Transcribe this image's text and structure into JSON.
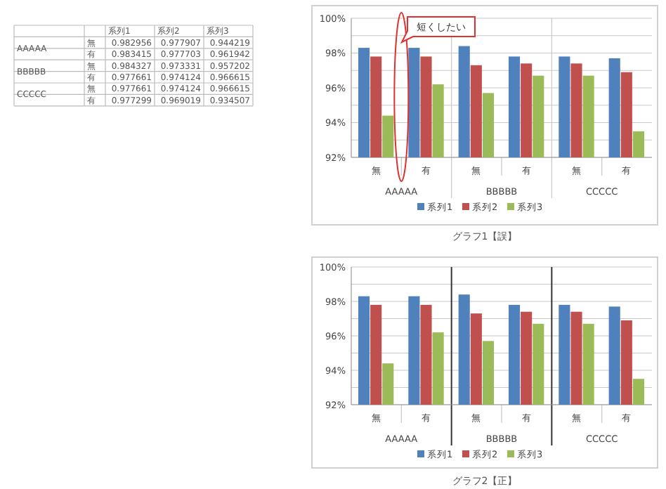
{
  "chart_data": [
    {
      "type": "other",
      "categories": [
        "無",
        "有",
        "無",
        "有",
        "無",
        "有"
      ],
      "series": [
        {
          "name": "系列1",
          "values": [
            0.982956,
            0.983415,
            0.984327,
            0.977661,
            0.977661,
            0.977299
          ]
        },
        {
          "name": "系列2",
          "values": [
            0.977907,
            0.977703,
            0.973331,
            0.974124,
            0.974124,
            0.969019
          ]
        },
        {
          "name": "系列3",
          "values": [
            0.944219,
            0.961942,
            0.957202,
            0.966615,
            0.966615,
            0.934507
          ]
        }
      ],
      "data_labels": true,
      "annotations": [
        "AAAAA",
        "BBBBB",
        "CCCCC"
      ]
    },
    {
      "type": "bar",
      "categories": [
        "無",
        "有",
        "無",
        "有",
        "無",
        "有"
      ],
      "series": [
        {
          "name": "系列1",
          "color": "#4f81bd",
          "values": [
            98.3,
            98.3,
            98.4,
            97.8,
            97.8,
            97.7
          ]
        },
        {
          "name": "系列2",
          "color": "#c0504d",
          "values": [
            97.8,
            97.8,
            97.3,
            97.4,
            97.4,
            96.9
          ]
        },
        {
          "name": "系列3",
          "color": "#9bbb59",
          "values": [
            94.4,
            96.2,
            95.7,
            96.7,
            96.7,
            93.5
          ]
        }
      ],
      "ylim": [
        92,
        100
      ],
      "yticks": [
        {
          "value": 92,
          "label": "92%"
        },
        {
          "value": 93,
          "label": null
        },
        {
          "value": 94,
          "label": "94%"
        },
        {
          "value": 95,
          "label": null
        },
        {
          "value": 96,
          "label": "96%"
        },
        {
          "value": 97,
          "label": null
        },
        {
          "value": 98,
          "label": "98%"
        },
        {
          "value": 99,
          "label": null
        },
        {
          "value": 100,
          "label": "100%"
        }
      ],
      "grid": "y",
      "legend": "bottom",
      "annotations": [
        "AAAAA",
        "BBBBB",
        "CCCCC",
        "グラフ1【誤】",
        "短くしたい"
      ]
    },
    {
      "type": "bar",
      "categories": [
        "無",
        "有",
        "無",
        "有",
        "無",
        "有"
      ],
      "series": [
        {
          "name": "系列1",
          "color": "#4f81bd",
          "values": [
            98.3,
            98.3,
            98.4,
            97.8,
            97.8,
            97.7
          ]
        },
        {
          "name": "系列2",
          "color": "#c0504d",
          "values": [
            97.8,
            97.8,
            97.3,
            97.4,
            97.4,
            96.9
          ]
        },
        {
          "name": "系列3",
          "color": "#9bbb59",
          "values": [
            94.4,
            96.2,
            95.7,
            96.7,
            96.7,
            93.5
          ]
        }
      ],
      "ylim": [
        92,
        100
      ],
      "yticks": [
        {
          "value": 92,
          "label": "92%"
        },
        {
          "value": 93,
          "label": null
        },
        {
          "value": 94,
          "label": "94%"
        },
        {
          "value": 95,
          "label": null
        },
        {
          "value": 96,
          "label": "96%"
        },
        {
          "value": 97,
          "label": null
        },
        {
          "value": 98,
          "label": "98%"
        },
        {
          "value": 99,
          "label": null
        },
        {
          "value": 100,
          "label": "100%"
        }
      ],
      "grid": "y",
      "legend": "bottom",
      "annotations": [
        "AAAAA",
        "BBBBB",
        "CCCCC",
        "グラフ2【正】"
      ]
    }
  ]
}
